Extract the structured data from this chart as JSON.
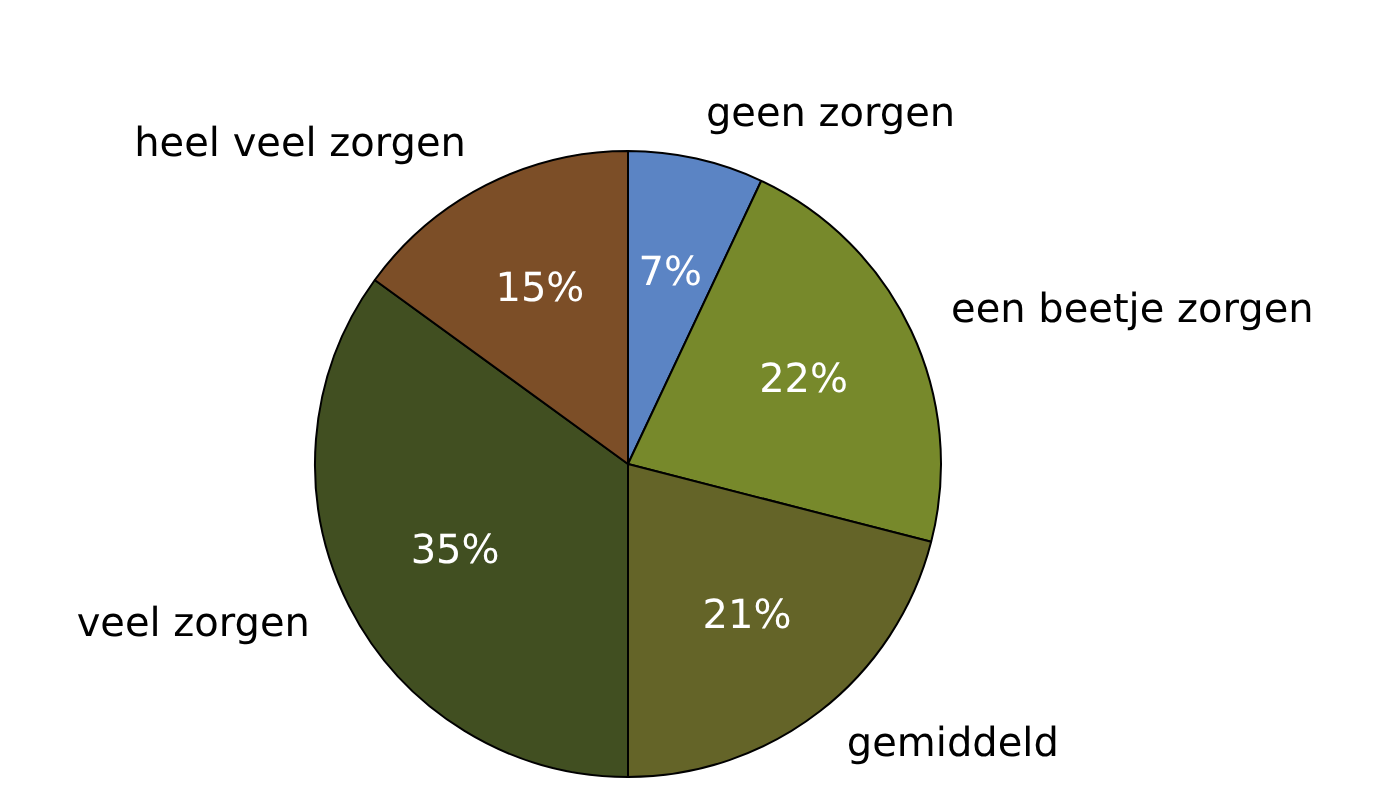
{
  "chart_data": {
    "type": "pie",
    "categories": [
      "geen zorgen",
      "een beetje zorgen",
      "gemiddeld",
      "veel zorgen",
      "heel veel zorgen"
    ],
    "values": [
      7,
      22,
      21,
      35,
      15
    ],
    "value_labels": [
      "7%",
      "22%",
      "21%",
      "35%",
      "15%"
    ],
    "colors": [
      "#5b84c4",
      "#77892b",
      "#646428",
      "#414f21",
      "#7c4e27"
    ],
    "legend": false
  }
}
